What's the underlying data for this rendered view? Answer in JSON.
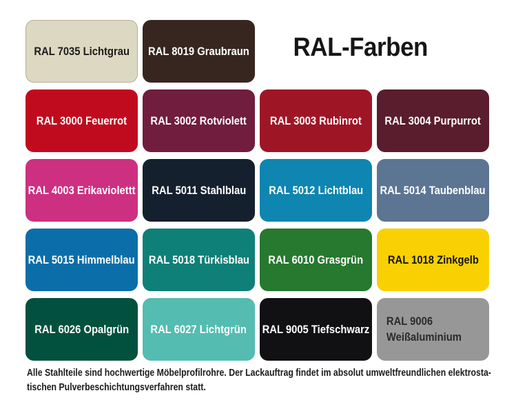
{
  "title": "RAL-Farben",
  "footer": {
    "text": "Alle Stahlteile sind hochwertige Möbelprofilrohre. Der Lackauftrag findet im absolut umweltfreundlichen elektrosta-\ntischen Pulverbeschichtungsverfahren statt."
  },
  "colors": {
    "page_background": "#ffffff",
    "title_text": "#161616",
    "footer_text": "#1c1c1c"
  },
  "swatches": [
    {
      "label": "RAL 7035 Lichtgrau",
      "bg": "#ddd8c1",
      "text": "#1c1c1c"
    },
    {
      "label": "RAL 8019 Graubraun",
      "bg": "#37261f",
      "text": "#ffffff"
    },
    {
      "label": "RAL 3000 Feuerrot",
      "bg": "#c00b1f",
      "text": "#ffffff"
    },
    {
      "label": "RAL 3002 Rotviolett",
      "bg": "#701d3e",
      "text": "#ffffff"
    },
    {
      "label": "RAL 3003 Rubinrot",
      "bg": "#9e1626",
      "text": "#ffffff"
    },
    {
      "label": "RAL 3004 Purpurrot",
      "bg": "#591d2e",
      "text": "#ffffff"
    },
    {
      "label": "RAL 4003 Erikaviolettt",
      "bg": "#cd3081",
      "text": "#ffffff"
    },
    {
      "label": "RAL 5011 Stahlblau",
      "bg": "#15202e",
      "text": "#ffffff"
    },
    {
      "label": "RAL 5012 Lichtblau",
      "bg": "#0f85b1",
      "text": "#ffffff"
    },
    {
      "label": "RAL 5014 Taubenblau",
      "bg": "#5b7593",
      "text": "#ffffff"
    },
    {
      "label": "RAL 5015 Himmelblau",
      "bg": "#0c6ea9",
      "text": "#ffffff"
    },
    {
      "label": "RAL 5018 Türkisblau",
      "bg": "#0e8078",
      "text": "#ffffff"
    },
    {
      "label": "RAL 6010 Grasgrün",
      "bg": "#26792e",
      "text": "#ffffff"
    },
    {
      "label": "RAL 1018 Zinkgelb",
      "bg": "#f9d103",
      "text": "#141414"
    },
    {
      "label": "RAL 6026 Opalgrün",
      "bg": "#02513e",
      "text": "#ffffff"
    },
    {
      "label": "RAL 6027 Lichtgrün",
      "bg": "#54bcb1",
      "text": "#ffffff"
    },
    {
      "label": "RAL 9005 Tiefschwarz",
      "bg": "#111114",
      "text": "#ffffff"
    },
    {
      "label": "RAL 9006\nWeißaluminium",
      "bg": "#979797",
      "text": "#2b2b2b"
    }
  ],
  "chart_data": {
    "type": "table",
    "title": "RAL-Farben",
    "columns": [
      "ral_code",
      "name",
      "hex_estimate"
    ],
    "rows": [
      [
        "RAL 7035",
        "Lichtgrau",
        "#ddd8c1"
      ],
      [
        "RAL 8019",
        "Graubraun",
        "#37261f"
      ],
      [
        "RAL 3000",
        "Feuerrot",
        "#c00b1f"
      ],
      [
        "RAL 3002",
        "Rotviolett",
        "#701d3e"
      ],
      [
        "RAL 3003",
        "Rubinrot",
        "#9e1626"
      ],
      [
        "RAL 3004",
        "Purpurrot",
        "#591d2e"
      ],
      [
        "RAL 4003",
        "Erikaviolettt",
        "#cd3081"
      ],
      [
        "RAL 5011",
        "Stahlblau",
        "#15202e"
      ],
      [
        "RAL 5012",
        "Lichtblau",
        "#0f85b1"
      ],
      [
        "RAL 5014",
        "Taubenblau",
        "#5b7593"
      ],
      [
        "RAL 5015",
        "Himmelblau",
        "#0c6ea9"
      ],
      [
        "RAL 5018",
        "Türkisblau",
        "#0e8078"
      ],
      [
        "RAL 6010",
        "Grasgrün",
        "#26792e"
      ],
      [
        "RAL 1018",
        "Zinkgelb",
        "#f9d103"
      ],
      [
        "RAL 6026",
        "Opalgrün",
        "#02513e"
      ],
      [
        "RAL 6027",
        "Lichtgrün",
        "#54bcb1"
      ],
      [
        "RAL 9005",
        "Tiefschwarz",
        "#111114"
      ],
      [
        "RAL 9006",
        "Weißaluminium",
        "#979797"
      ]
    ],
    "layout": "5-row by 4-column swatch grid; row 1 has 2 swatches plus title spanning columns 3-4"
  }
}
